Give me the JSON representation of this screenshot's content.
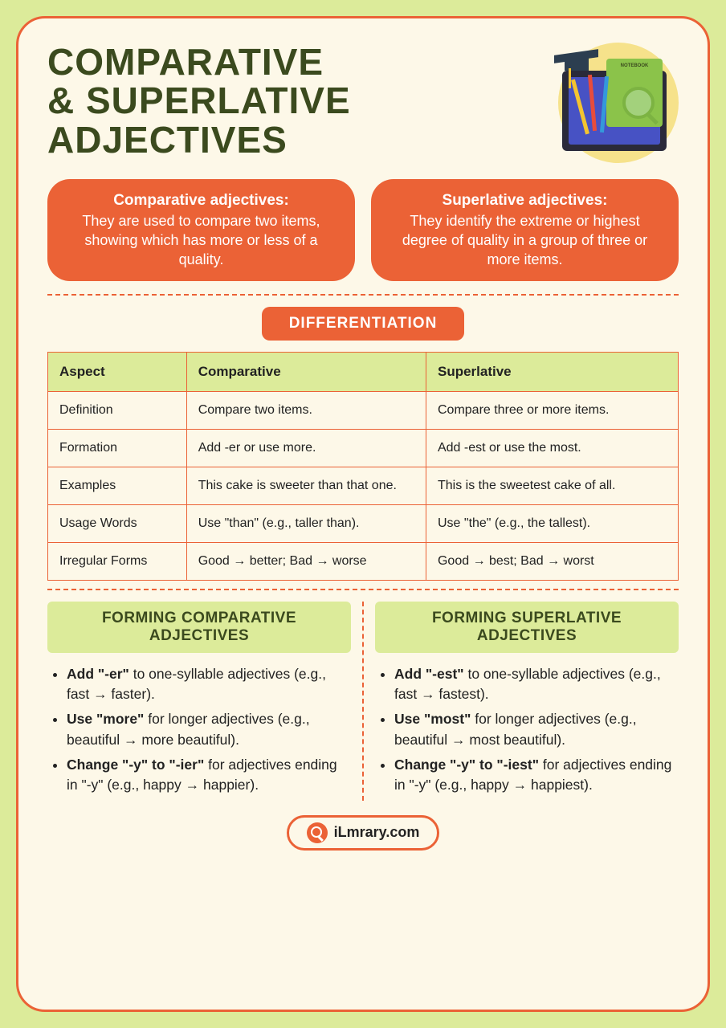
{
  "title_line1": "COMPARATIVE",
  "title_line2": "& SUPERLATIVE",
  "title_line3": "ADJECTIVES",
  "defs": {
    "comp_head": "Comparative adjectives:",
    "comp_body": "They are used to compare two items, showing which has more or less of a quality.",
    "sup_head": "Superlative adjectives:",
    "sup_body": "They identify the extreme or highest degree of quality in a group of three or more items."
  },
  "diff_label": "DIFFERENTIATION",
  "table": {
    "headers": [
      "Aspect",
      "Comparative",
      "Superlative"
    ],
    "rows": [
      [
        "Definition",
        "Compare two items.",
        "Compare three or more items."
      ],
      [
        "Formation",
        "Add -er or use more.",
        "Add -est or use the most."
      ],
      [
        "Examples",
        "This cake is sweeter than that one.",
        "This is the sweetest cake of all."
      ],
      [
        "Usage Words",
        "Use \"than\" (e.g., taller than).",
        "Use \"the\" (e.g., the tallest)."
      ],
      [
        "Irregular Forms",
        "Good → better; Bad → worse",
        "Good → best; Bad → worst"
      ]
    ]
  },
  "forming": {
    "comp_title": "FORMING COMPARATIVE ADJECTIVES",
    "sup_title": "FORMING SUPERLATIVE ADJECTIVES",
    "comp_items": [
      {
        "b": "Add \"-er\"",
        "rest": " to one-syllable adjectives (e.g., fast → faster)."
      },
      {
        "b": "Use \"more\"",
        "rest": " for longer adjectives (e.g., beautiful → more beautiful)."
      },
      {
        "b": "Change \"-y\" to \"-ier\"",
        "rest": " for adjectives ending in \"-y\" (e.g., happy → happier)."
      }
    ],
    "sup_items": [
      {
        "b": "Add \"-est\"",
        "rest": " to one-syllable adjectives (e.g., fast → fastest)."
      },
      {
        "b": "Use \"most\"",
        "rest": " for longer adjectives (e.g., beautiful → most beautiful)."
      },
      {
        "b": "Change \"-y\" to \"-iest\"",
        "rest": " for adjectives ending in \"-y\" (e.g., happy → happiest)."
      }
    ]
  },
  "footer": "iLmrary.com",
  "colors": {
    "bg": "#dceb9a",
    "card_bg": "#fdf8e8",
    "accent": "#eb6236",
    "dark_green": "#3b4a1e"
  }
}
